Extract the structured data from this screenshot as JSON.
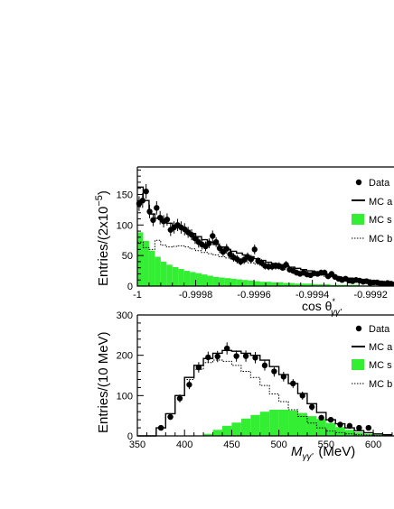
{
  "chart_data": [
    {
      "type": "scatter",
      "title": "",
      "xlabel_main": "cos θ",
      "xlabel_sup": "*",
      "xlabel_sub": "γγ'",
      "ylabel_base": "Entries/(2x10",
      "ylabel_exp": "−5",
      "ylabel_close": ")",
      "xlim": [
        -1.0,
        -0.99912
      ],
      "ylim": [
        0,
        195
      ],
      "x_ticks": [
        -1.0,
        -0.9998,
        -0.9996,
        -0.9994,
        -0.9992
      ],
      "x_tick_labels": [
        "-1",
        "-0.9998",
        "-0.9996",
        "-0.9994",
        "-0.9992"
      ],
      "y_ticks": [
        0,
        50,
        100,
        150
      ],
      "y_tick_labels": [
        "0",
        "50",
        "100",
        "150"
      ],
      "legend": {
        "position": "top-right",
        "entries": [
          "Data",
          "MC a",
          "MC s",
          "MC b"
        ]
      },
      "series": [
        {
          "name": "Data",
          "kind": "points",
          "color": "#000000",
          "x": [
            -0.999994,
            -0.999982,
            -0.99997,
            -0.999958,
            -0.999946,
            -0.999934,
            -0.999922,
            -0.99991,
            -0.999898,
            -0.999886,
            -0.999874,
            -0.999862,
            -0.99985,
            -0.999838,
            -0.999826,
            -0.999814,
            -0.999802,
            -0.99979,
            -0.999778,
            -0.999766,
            -0.999754,
            -0.999742,
            -0.99973,
            -0.999718,
            -0.999706,
            -0.999694,
            -0.999682,
            -0.99967,
            -0.999658,
            -0.999646,
            -0.999634,
            -0.999622,
            -0.99961,
            -0.999598,
            -0.999586,
            -0.999574,
            -0.999562,
            -0.99955,
            -0.999538,
            -0.999526,
            -0.999514,
            -0.999502,
            -0.99949,
            -0.999478,
            -0.999466,
            -0.999454,
            -0.999442,
            -0.99943,
            -0.999418,
            -0.999406,
            -0.999394,
            -0.999382,
            -0.99937,
            -0.999358,
            -0.999346,
            -0.999334,
            -0.999322,
            -0.99931,
            -0.999298,
            -0.999286,
            -0.999274,
            -0.999262,
            -0.99925,
            -0.999238,
            -0.999226,
            -0.999214,
            -0.999202,
            -0.99919,
            -0.999178,
            -0.999166,
            -0.999154,
            -0.999142,
            -0.99913
          ],
          "y": [
            135,
            140,
            155,
            122,
            108,
            128,
            112,
            106,
            109,
            92,
            96,
            100,
            96,
            93,
            88,
            84,
            78,
            72,
            68,
            65,
            70,
            82,
            72,
            62,
            56,
            61,
            52,
            47,
            44,
            40,
            43,
            48,
            44,
            60,
            41,
            38,
            33,
            32,
            32,
            33,
            33,
            30,
            35,
            27,
            25,
            22,
            20,
            22,
            19,
            18,
            21,
            20,
            22,
            22,
            16,
            20,
            15,
            12,
            10,
            12,
            9,
            8,
            10,
            9,
            7,
            8,
            5,
            6,
            6,
            4,
            4,
            5,
            4
          ],
          "err": [
            12,
            12,
            12,
            11,
            10,
            11,
            11,
            10,
            10,
            10,
            10,
            10,
            10,
            10,
            9,
            9,
            9,
            9,
            8,
            8,
            8,
            9,
            8,
            8,
            7,
            8,
            7,
            7,
            7,
            6,
            7,
            7,
            7,
            8,
            6,
            6,
            6,
            6,
            6,
            6,
            6,
            5,
            6,
            5,
            5,
            5,
            4,
            5,
            4,
            4,
            5,
            4,
            5,
            5,
            4,
            4,
            4,
            3,
            3,
            3,
            3,
            3,
            3,
            3,
            3,
            3,
            2,
            2,
            2,
            2,
            2,
            2,
            2
          ]
        },
        {
          "name": "MC a",
          "kind": "step",
          "color": "#000000",
          "bins": [
            -1.0,
            -0.99998,
            -0.99996,
            -0.99994,
            -0.99992,
            -0.9999,
            -0.99988,
            -0.99986,
            -0.99984,
            -0.99982,
            -0.9998,
            -0.99978,
            -0.99976,
            -0.99974,
            -0.99972,
            -0.9997,
            -0.99968,
            -0.99966,
            -0.99964,
            -0.99962,
            -0.9996,
            -0.99958,
            -0.99956,
            -0.99954,
            -0.99952,
            -0.9995,
            -0.99948,
            -0.99946,
            -0.99944,
            -0.99942,
            -0.9994,
            -0.99938,
            -0.99936,
            -0.99934,
            -0.99932,
            -0.9993,
            -0.99928,
            -0.99926,
            -0.99924,
            -0.99922,
            -0.9992,
            -0.99918,
            -0.99916,
            -0.99914,
            -0.99912
          ],
          "values": [
            162,
            140,
            118,
            111,
            106,
            103,
            99,
            96,
            91,
            86,
            81,
            76,
            72,
            68,
            64,
            60,
            57,
            54,
            51,
            48,
            45,
            42,
            39,
            37,
            35,
            33,
            31,
            29,
            27,
            25,
            23,
            21,
            19,
            17,
            15,
            14,
            13,
            12,
            11,
            10,
            9,
            8,
            7,
            6
          ]
        },
        {
          "name": "MC s",
          "kind": "filled",
          "color": "#33ee33",
          "bins": [
            -1.0,
            -0.99998,
            -0.99996,
            -0.99994,
            -0.99992,
            -0.9999,
            -0.99988,
            -0.99986,
            -0.99984,
            -0.99982,
            -0.9998,
            -0.99978,
            -0.99976,
            -0.99974,
            -0.99972,
            -0.9997,
            -0.99968,
            -0.99966,
            -0.99964,
            -0.99962,
            -0.9996,
            -0.99958,
            -0.99956,
            -0.99954,
            -0.99952,
            -0.9995,
            -0.99948,
            -0.99946,
            -0.99944,
            -0.99942,
            -0.9994,
            -0.99938,
            -0.99936,
            -0.99934,
            -0.99932,
            -0.9993,
            -0.99928,
            -0.99926,
            -0.99924,
            -0.99922,
            -0.9992,
            -0.99918,
            -0.99916,
            -0.99914,
            -0.99912
          ],
          "values": [
            88,
            74,
            58,
            48,
            40,
            35,
            31,
            28,
            25,
            23,
            21,
            19,
            17,
            15,
            14,
            13,
            12,
            11,
            10,
            9,
            8,
            7,
            7,
            6,
            6,
            5,
            5,
            4,
            4,
            4,
            3,
            3,
            3,
            2,
            2,
            2,
            2,
            2,
            1,
            1,
            1,
            1,
            1,
            1
          ]
        },
        {
          "name": "MC b",
          "kind": "dotted-step",
          "color": "#000000",
          "bins": [
            -1.0,
            -0.99998,
            -0.99996,
            -0.99994,
            -0.99992,
            -0.9999,
            -0.99988,
            -0.99986,
            -0.99984,
            -0.99982,
            -0.9998,
            -0.99978,
            -0.99976,
            -0.99974,
            -0.99972,
            -0.9997,
            -0.99968,
            -0.99966,
            -0.99964,
            -0.99962,
            -0.9996,
            -0.99958,
            -0.99956,
            -0.99954,
            -0.99952,
            -0.9995,
            -0.99948,
            -0.99946,
            -0.99944,
            -0.99942,
            -0.9994,
            -0.99938,
            -0.99936,
            -0.99934,
            -0.99932,
            -0.9993,
            -0.99928,
            -0.99926,
            -0.99924,
            -0.99922,
            -0.9992,
            -0.99918,
            -0.99916,
            -0.99914,
            -0.99912
          ],
          "values": [
            72,
            63,
            60,
            75,
            67,
            64,
            65,
            66,
            64,
            61,
            58,
            55,
            53,
            51,
            48,
            46,
            44,
            42,
            40,
            38,
            36,
            34,
            32,
            30,
            29,
            27,
            25,
            24,
            22,
            21,
            19,
            18,
            16,
            15,
            13,
            12,
            11,
            10,
            9,
            8,
            7,
            6,
            6,
            5
          ]
        }
      ]
    },
    {
      "type": "scatter",
      "title": "",
      "xlabel_main": "M",
      "xlabel_sub": "γγ'",
      "xlabel_unit": "(MeV)",
      "ylabel": "Entries/(10 MeV)",
      "xlim": [
        350,
        622
      ],
      "ylim": [
        0,
        300
      ],
      "x_ticks": [
        350,
        400,
        450,
        500,
        550,
        600
      ],
      "x_tick_labels": [
        "350",
        "400",
        "450",
        "500",
        "550",
        "600"
      ],
      "y_ticks": [
        0,
        100,
        200,
        300
      ],
      "y_tick_labels": [
        "0",
        "100",
        "200",
        "300"
      ],
      "legend": {
        "position": "top-right",
        "entries": [
          "Data",
          "MC a",
          "MC s",
          "MC b"
        ]
      },
      "series": [
        {
          "name": "Data",
          "kind": "points",
          "color": "#000000",
          "x": [
            375,
            385,
            395,
            405,
            415,
            425,
            435,
            445,
            455,
            465,
            475,
            485,
            495,
            505,
            515,
            525,
            535,
            545,
            555,
            565,
            575,
            585,
            595
          ],
          "y": [
            20,
            47,
            93,
            127,
            170,
            195,
            197,
            217,
            198,
            198,
            194,
            175,
            160,
            147,
            130,
            100,
            72,
            45,
            40,
            28,
            25,
            20,
            20
          ],
          "err": [
            5,
            7,
            10,
            11,
            13,
            14,
            14,
            15,
            14,
            14,
            14,
            13,
            13,
            12,
            11,
            10,
            9,
            7,
            6,
            5,
            5,
            4,
            4
          ]
        },
        {
          "name": "MC a",
          "kind": "step",
          "color": "#000000",
          "bins": [
            350,
            360,
            370,
            380,
            390,
            400,
            410,
            420,
            430,
            440,
            450,
            460,
            470,
            480,
            490,
            500,
            510,
            520,
            530,
            540,
            550,
            560,
            570,
            580,
            590,
            600,
            610,
            620
          ],
          "values": [
            0,
            0,
            20,
            55,
            100,
            145,
            175,
            192,
            205,
            212,
            210,
            205,
            200,
            188,
            172,
            152,
            130,
            105,
            80,
            58,
            40,
            30,
            20,
            13,
            8,
            5,
            3
          ]
        },
        {
          "name": "MC s",
          "kind": "filled",
          "color": "#33ee33",
          "bins": [
            350,
            360,
            370,
            380,
            390,
            400,
            410,
            420,
            430,
            440,
            450,
            460,
            470,
            480,
            490,
            500,
            510,
            520,
            530,
            540,
            550,
            560,
            570,
            580,
            590,
            600,
            610,
            620
          ],
          "values": [
            0,
            0,
            0,
            0,
            0,
            0,
            0,
            5,
            15,
            25,
            33,
            43,
            52,
            60,
            65,
            65,
            63,
            57,
            49,
            42,
            32,
            22,
            15,
            9,
            5,
            3,
            2
          ]
        },
        {
          "name": "MC b",
          "kind": "dotted-step",
          "color": "#000000",
          "bins": [
            350,
            360,
            370,
            380,
            390,
            400,
            410,
            420,
            430,
            440,
            450,
            460,
            470,
            480,
            490,
            500,
            510,
            520,
            530,
            540,
            550,
            560,
            570,
            580,
            590,
            600,
            610,
            620
          ],
          "values": [
            0,
            0,
            20,
            55,
            100,
            140,
            165,
            182,
            188,
            185,
            175,
            160,
            145,
            125,
            104,
            85,
            65,
            48,
            32,
            20,
            12,
            8,
            5,
            3,
            2,
            1,
            1
          ]
        }
      ]
    }
  ]
}
